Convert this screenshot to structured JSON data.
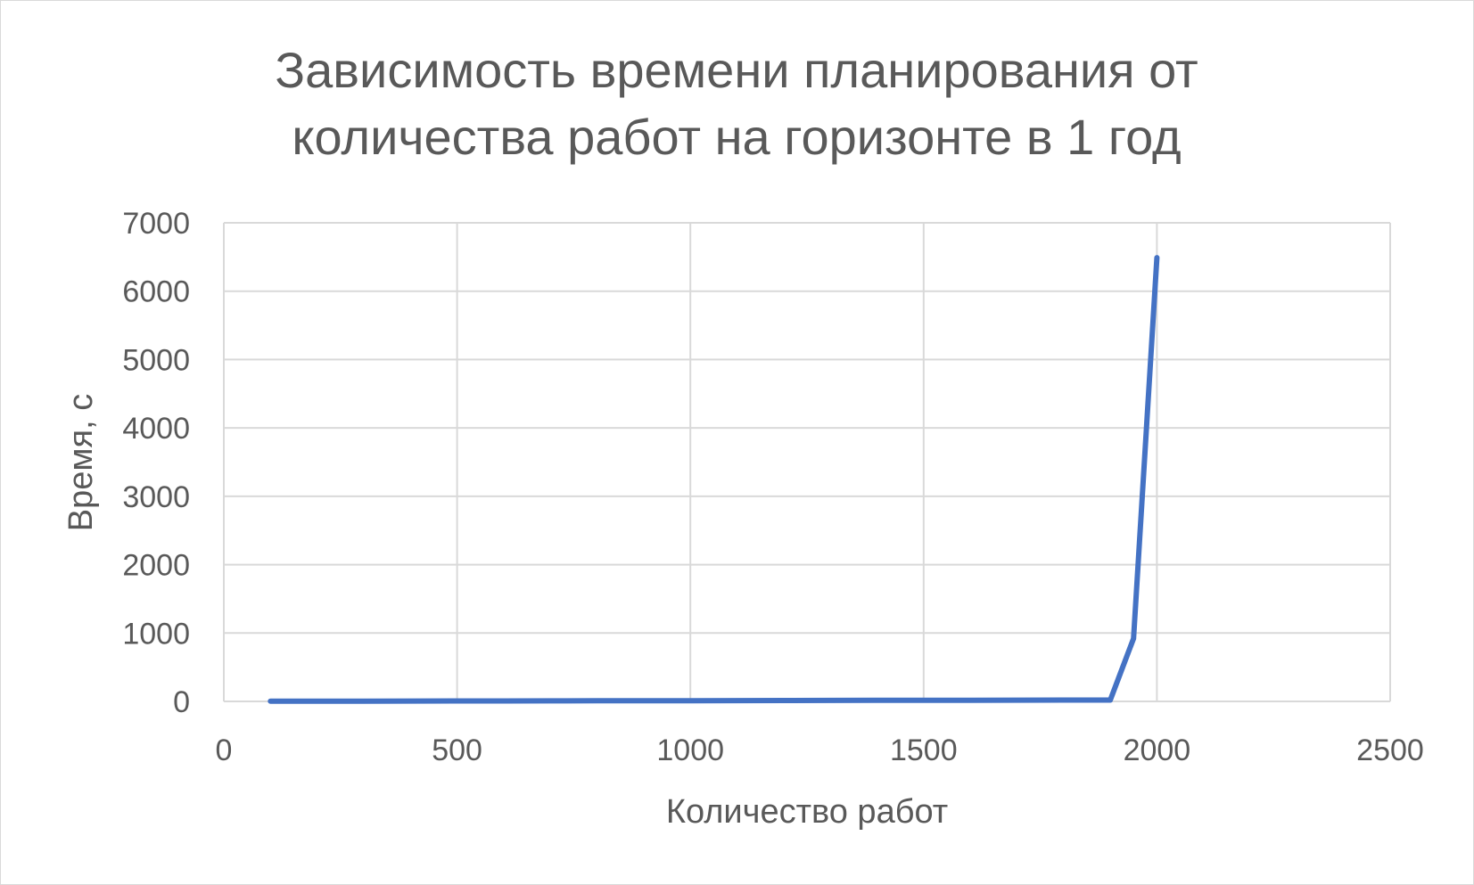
{
  "chart_data": {
    "type": "line",
    "title_lines": [
      "Зависимость времени планирования от",
      "количества работ на горизонте в 1 год"
    ],
    "xlabel": "Количество работ",
    "ylabel": "Время, с",
    "xlim": [
      0,
      2500
    ],
    "ylim": [
      0,
      7000
    ],
    "x_ticks": [
      0,
      500,
      1000,
      1500,
      2000,
      2500
    ],
    "y_ticks": [
      0,
      1000,
      2000,
      3000,
      4000,
      5000,
      6000,
      7000
    ],
    "x_tick_labels": [
      "0",
      "500",
      "1000",
      "1500",
      "2000",
      "2500"
    ],
    "y_tick_labels": [
      "0",
      "1000",
      "2000",
      "3000",
      "4000",
      "5000",
      "6000",
      "7000"
    ],
    "grid": true,
    "legend": "none",
    "series": [
      {
        "color": "#4472c4",
        "x": [
          100,
          200,
          300,
          400,
          500,
          600,
          700,
          800,
          900,
          1000,
          1100,
          1200,
          1300,
          1400,
          1500,
          1600,
          1700,
          1800,
          1900,
          1950,
          2000
        ],
        "y": [
          2,
          3,
          4,
          5,
          6,
          7,
          8,
          9,
          10,
          11,
          12,
          13,
          14,
          15,
          16,
          17,
          18,
          19,
          20,
          920,
          6490
        ]
      }
    ]
  }
}
